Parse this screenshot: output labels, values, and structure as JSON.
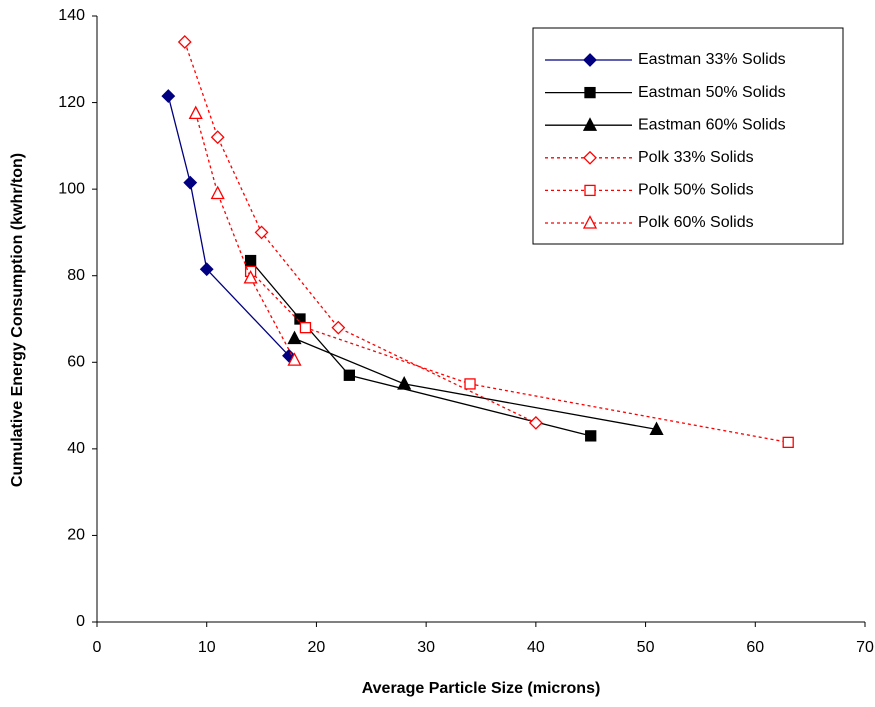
{
  "chart_data": {
    "type": "line",
    "x_label": "Average Particle Size (microns)",
    "y_label": "Cumulative Energy Consumption (kwhr/ton)",
    "xlim": [
      0,
      70
    ],
    "xticks": [
      0,
      10,
      20,
      30,
      40,
      50,
      60,
      70
    ],
    "ylim": [
      0,
      140
    ],
    "yticks": [
      0,
      20,
      40,
      60,
      80,
      100,
      120,
      140
    ],
    "grid": false,
    "legend": "upper right",
    "series": [
      {
        "name": "Eastman 33% Solids",
        "color": "#000080",
        "marker": "diamond",
        "filled": true,
        "dashed": false,
        "x": [
          6.5,
          8.5,
          10,
          17.5
        ],
        "values": [
          121.5,
          101.5,
          81.5,
          61.5
        ]
      },
      {
        "name": "Eastman 50% Solids",
        "color": "#000000",
        "marker": "square",
        "filled": true,
        "dashed": false,
        "x": [
          14,
          18.5,
          23,
          45
        ],
        "values": [
          83.5,
          70,
          57,
          43
        ]
      },
      {
        "name": "Eastman 60% Solids",
        "color": "#000000",
        "marker": "triangle",
        "filled": true,
        "dashed": false,
        "x": [
          18,
          28,
          51
        ],
        "values": [
          65.5,
          55,
          44.5
        ]
      },
      {
        "name": "Polk 33% Solids",
        "color": "#ff0000",
        "marker": "diamond",
        "filled": false,
        "dashed": true,
        "x": [
          8,
          11,
          15,
          22,
          40
        ],
        "values": [
          134,
          112,
          90,
          68,
          46
        ]
      },
      {
        "name": "Polk 50% Solids",
        "color": "#ff0000",
        "marker": "square",
        "filled": false,
        "dashed": true,
        "x": [
          14,
          19,
          34,
          63
        ],
        "values": [
          81,
          68,
          55,
          41.5
        ]
      },
      {
        "name": "Polk 60% Solids",
        "color": "#ff0000",
        "marker": "triangle",
        "filled": false,
        "dashed": true,
        "x": [
          9,
          11,
          14,
          18
        ],
        "values": [
          117.5,
          99,
          79.5,
          60.5
        ]
      }
    ]
  }
}
